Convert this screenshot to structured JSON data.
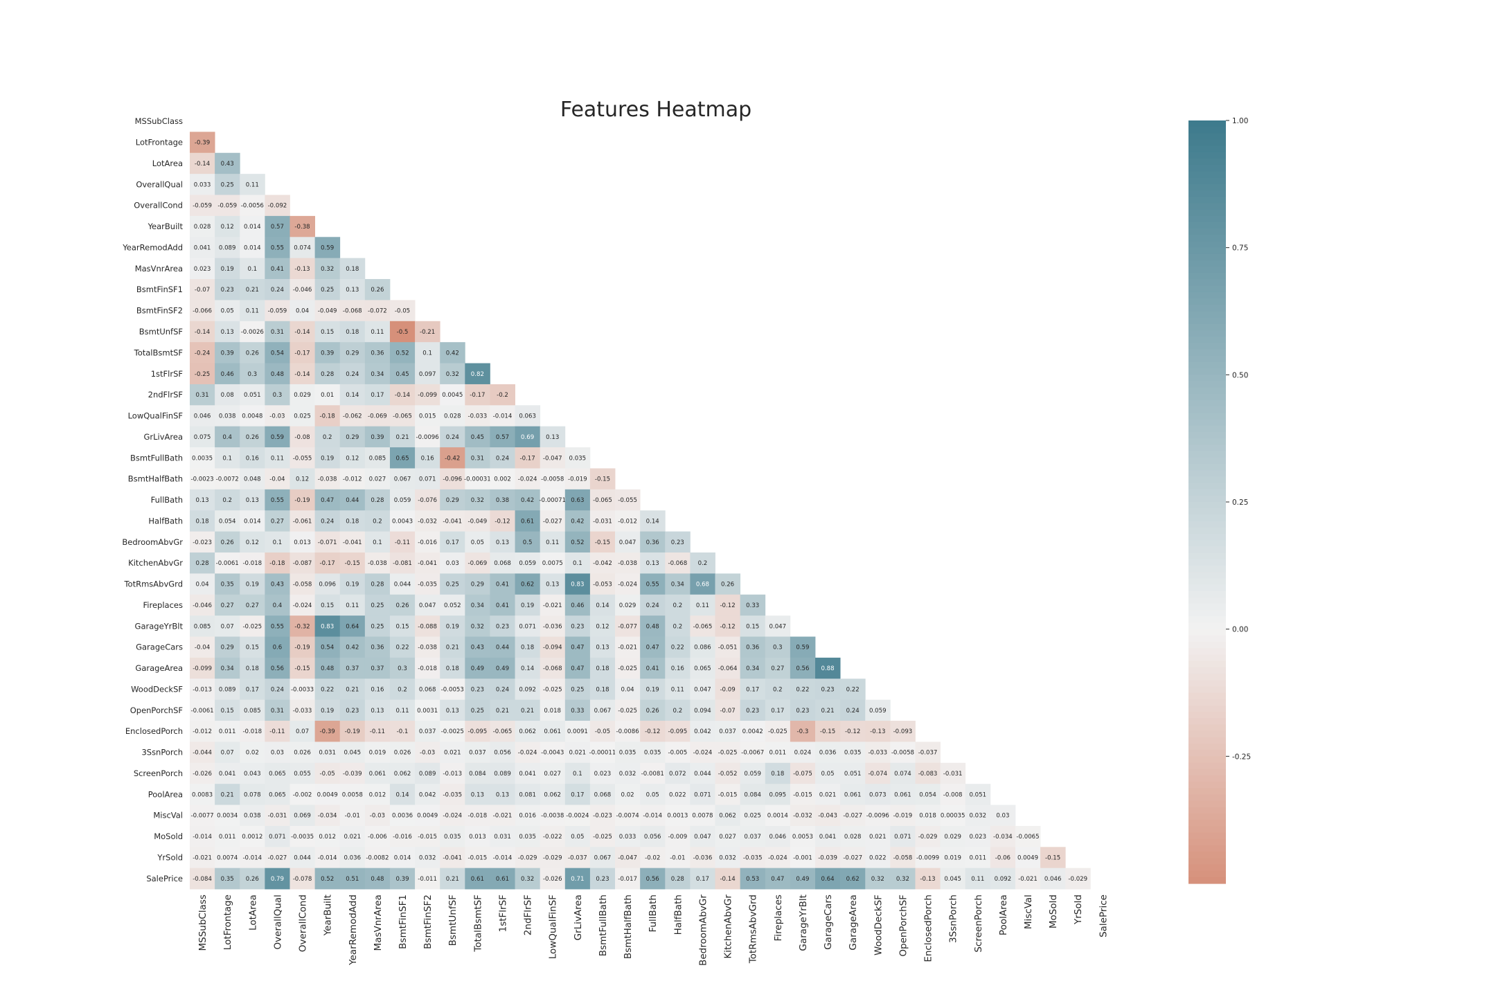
{
  "chart_data": {
    "type": "heatmap",
    "title": "Features Heatmap",
    "mask": "upper-triangle-and-diagonal",
    "labels": [
      "MSSubClass",
      "LotFrontage",
      "LotArea",
      "OverallQual",
      "OverallCond",
      "YearBuilt",
      "YearRemodAdd",
      "MasVnrArea",
      "BsmtFinSF1",
      "BsmtFinSF2",
      "BsmtUnfSF",
      "TotalBsmtSF",
      "1stFlrSF",
      "2ndFlrSF",
      "LowQualFinSF",
      "GrLivArea",
      "BsmtFullBath",
      "BsmtHalfBath",
      "FullBath",
      "HalfBath",
      "BedroomAbvGr",
      "KitchenAbvGr",
      "TotRmsAbvGrd",
      "Fireplaces",
      "GarageYrBlt",
      "GarageCars",
      "GarageArea",
      "WoodDeckSF",
      "OpenPorchSF",
      "EnclosedPorch",
      "3SsnPorch",
      "ScreenPorch",
      "PoolArea",
      "MiscVal",
      "MoSold",
      "YrSold",
      "SalePrice"
    ],
    "rows": [
      [],
      [
        "-0.39"
      ],
      [
        "-0.14",
        "0.43"
      ],
      [
        "0.033",
        "0.25",
        "0.11"
      ],
      [
        "-0.059",
        "-0.059",
        "-0.0056",
        "-0.092"
      ],
      [
        "0.028",
        "0.12",
        "0.014",
        "0.57",
        "-0.38"
      ],
      [
        "0.041",
        "0.089",
        "0.014",
        "0.55",
        "0.074",
        "0.59"
      ],
      [
        "0.023",
        "0.19",
        "0.1",
        "0.41",
        "-0.13",
        "0.32",
        "0.18"
      ],
      [
        "-0.07",
        "0.23",
        "0.21",
        "0.24",
        "-0.046",
        "0.25",
        "0.13",
        "0.26"
      ],
      [
        "-0.066",
        "0.05",
        "0.11",
        "-0.059",
        "0.04",
        "-0.049",
        "-0.068",
        "-0.072",
        "-0.05"
      ],
      [
        "-0.14",
        "0.13",
        "-0.0026",
        "0.31",
        "-0.14",
        "0.15",
        "0.18",
        "0.11",
        "-0.5",
        "-0.21"
      ],
      [
        "-0.24",
        "0.39",
        "0.26",
        "0.54",
        "-0.17",
        "0.39",
        "0.29",
        "0.36",
        "0.52",
        "0.1",
        "0.42"
      ],
      [
        "-0.25",
        "0.46",
        "0.3",
        "0.48",
        "-0.14",
        "0.28",
        "0.24",
        "0.34",
        "0.45",
        "0.097",
        "0.32",
        "0.82"
      ],
      [
        "0.31",
        "0.08",
        "0.051",
        "0.3",
        "0.029",
        "0.01",
        "0.14",
        "0.17",
        "-0.14",
        "-0.099",
        "0.0045",
        "-0.17",
        "-0.2"
      ],
      [
        "0.046",
        "0.038",
        "0.0048",
        "-0.03",
        "0.025",
        "-0.18",
        "-0.062",
        "-0.069",
        "-0.065",
        "0.015",
        "0.028",
        "-0.033",
        "-0.014",
        "0.063"
      ],
      [
        "0.075",
        "0.4",
        "0.26",
        "0.59",
        "-0.08",
        "0.2",
        "0.29",
        "0.39",
        "0.21",
        "-0.0096",
        "0.24",
        "0.45",
        "0.57",
        "0.69",
        "0.13"
      ],
      [
        "0.0035",
        "0.1",
        "0.16",
        "0.11",
        "-0.055",
        "0.19",
        "0.12",
        "0.085",
        "0.65",
        "0.16",
        "-0.42",
        "0.31",
        "0.24",
        "-0.17",
        "-0.047",
        "0.035"
      ],
      [
        "-0.0023",
        "-0.0072",
        "0.048",
        "-0.04",
        "0.12",
        "-0.038",
        "-0.012",
        "0.027",
        "0.067",
        "0.071",
        "-0.096",
        "-0.00031",
        "0.002",
        "-0.024",
        "-0.0058",
        "-0.019",
        "-0.15"
      ],
      [
        "0.13",
        "0.2",
        "0.13",
        "0.55",
        "-0.19",
        "0.47",
        "0.44",
        "0.28",
        "0.059",
        "-0.076",
        "0.29",
        "0.32",
        "0.38",
        "0.42",
        "-0.00071",
        "0.63",
        "-0.065",
        "-0.055"
      ],
      [
        "0.18",
        "0.054",
        "0.014",
        "0.27",
        "-0.061",
        "0.24",
        "0.18",
        "0.2",
        "0.0043",
        "-0.032",
        "-0.041",
        "-0.049",
        "-0.12",
        "0.61",
        "-0.027",
        "0.42",
        "-0.031",
        "-0.012",
        "0.14"
      ],
      [
        "-0.023",
        "0.26",
        "0.12",
        "0.1",
        "0.013",
        "-0.071",
        "-0.041",
        "0.1",
        "-0.11",
        "-0.016",
        "0.17",
        "0.05",
        "0.13",
        "0.5",
        "0.11",
        "0.52",
        "-0.15",
        "0.047",
        "0.36",
        "0.23"
      ],
      [
        "0.28",
        "-0.0061",
        "-0.018",
        "-0.18",
        "-0.087",
        "-0.17",
        "-0.15",
        "-0.038",
        "-0.081",
        "-0.041",
        "0.03",
        "-0.069",
        "0.068",
        "0.059",
        "0.0075",
        "0.1",
        "-0.042",
        "-0.038",
        "0.13",
        "-0.068",
        "0.2"
      ],
      [
        "0.04",
        "0.35",
        "0.19",
        "0.43",
        "-0.058",
        "0.096",
        "0.19",
        "0.28",
        "0.044",
        "-0.035",
        "0.25",
        "0.29",
        "0.41",
        "0.62",
        "0.13",
        "0.83",
        "-0.053",
        "-0.024",
        "0.55",
        "0.34",
        "0.68",
        "0.26"
      ],
      [
        "-0.046",
        "0.27",
        "0.27",
        "0.4",
        "-0.024",
        "0.15",
        "0.11",
        "0.25",
        "0.26",
        "0.047",
        "0.052",
        "0.34",
        "0.41",
        "0.19",
        "-0.021",
        "0.46",
        "0.14",
        "0.029",
        "0.24",
        "0.2",
        "0.11",
        "-0.12",
        "0.33"
      ],
      [
        "0.085",
        "0.07",
        "-0.025",
        "0.55",
        "-0.32",
        "0.83",
        "0.64",
        "0.25",
        "0.15",
        "-0.088",
        "0.19",
        "0.32",
        "0.23",
        "0.071",
        "-0.036",
        "0.23",
        "0.12",
        "-0.077",
        "0.48",
        "0.2",
        "-0.065",
        "-0.12",
        "0.15",
        "0.047"
      ],
      [
        "-0.04",
        "0.29",
        "0.15",
        "0.6",
        "-0.19",
        "0.54",
        "0.42",
        "0.36",
        "0.22",
        "-0.038",
        "0.21",
        "0.43",
        "0.44",
        "0.18",
        "-0.094",
        "0.47",
        "0.13",
        "-0.021",
        "0.47",
        "0.22",
        "0.086",
        "-0.051",
        "0.36",
        "0.3",
        "0.59"
      ],
      [
        "-0.099",
        "0.34",
        "0.18",
        "0.56",
        "-0.15",
        "0.48",
        "0.37",
        "0.37",
        "0.3",
        "-0.018",
        "0.18",
        "0.49",
        "0.49",
        "0.14",
        "-0.068",
        "0.47",
        "0.18",
        "-0.025",
        "0.41",
        "0.16",
        "0.065",
        "-0.064",
        "0.34",
        "0.27",
        "0.56",
        "0.88"
      ],
      [
        "-0.013",
        "0.089",
        "0.17",
        "0.24",
        "-0.0033",
        "0.22",
        "0.21",
        "0.16",
        "0.2",
        "0.068",
        "-0.0053",
        "0.23",
        "0.24",
        "0.092",
        "-0.025",
        "0.25",
        "0.18",
        "0.04",
        "0.19",
        "0.11",
        "0.047",
        "-0.09",
        "0.17",
        "0.2",
        "0.22",
        "0.23",
        "0.22"
      ],
      [
        "-0.0061",
        "0.15",
        "0.085",
        "0.31",
        "-0.033",
        "0.19",
        "0.23",
        "0.13",
        "0.11",
        "0.0031",
        "0.13",
        "0.25",
        "0.21",
        "0.21",
        "0.018",
        "0.33",
        "0.067",
        "-0.025",
        "0.26",
        "0.2",
        "0.094",
        "-0.07",
        "0.23",
        "0.17",
        "0.23",
        "0.21",
        "0.24",
        "0.059"
      ],
      [
        "-0.012",
        "0.011",
        "-0.018",
        "-0.11",
        "0.07",
        "-0.39",
        "-0.19",
        "-0.11",
        "-0.1",
        "0.037",
        "-0.0025",
        "-0.095",
        "-0.065",
        "0.062",
        "0.061",
        "0.0091",
        "-0.05",
        "-0.0086",
        "-0.12",
        "-0.095",
        "0.042",
        "0.037",
        "0.0042",
        "-0.025",
        "-0.3",
        "-0.15",
        "-0.12",
        "-0.13",
        "-0.093"
      ],
      [
        "-0.044",
        "0.07",
        "0.02",
        "0.03",
        "0.026",
        "0.031",
        "0.045",
        "0.019",
        "0.026",
        "-0.03",
        "0.021",
        "0.037",
        "0.056",
        "-0.024",
        "-0.0043",
        "0.021",
        "-0.00011",
        "0.035",
        "0.035",
        "-0.005",
        "-0.024",
        "-0.025",
        "-0.0067",
        "0.011",
        "0.024",
        "0.036",
        "0.035",
        "-0.033",
        "-0.0058",
        "-0.037"
      ],
      [
        "-0.026",
        "0.041",
        "0.043",
        "0.065",
        "0.055",
        "-0.05",
        "-0.039",
        "0.061",
        "0.062",
        "0.089",
        "-0.013",
        "0.084",
        "0.089",
        "0.041",
        "0.027",
        "0.1",
        "0.023",
        "0.032",
        "-0.0081",
        "0.072",
        "0.044",
        "-0.052",
        "0.059",
        "0.18",
        "-0.075",
        "0.05",
        "0.051",
        "-0.074",
        "0.074",
        "-0.083",
        "-0.031"
      ],
      [
        "0.0083",
        "0.21",
        "0.078",
        "0.065",
        "-0.002",
        "0.0049",
        "0.0058",
        "0.012",
        "0.14",
        "0.042",
        "-0.035",
        "0.13",
        "0.13",
        "0.081",
        "0.062",
        "0.17",
        "0.068",
        "0.02",
        "0.05",
        "0.022",
        "0.071",
        "-0.015",
        "0.084",
        "0.095",
        "-0.015",
        "0.021",
        "0.061",
        "0.073",
        "0.061",
        "0.054",
        "-0.008",
        "0.051"
      ],
      [
        "-0.0077",
        "0.0034",
        "0.038",
        "-0.031",
        "0.069",
        "-0.034",
        "-0.01",
        "-0.03",
        "0.0036",
        "0.0049",
        "-0.024",
        "-0.018",
        "-0.021",
        "0.016",
        "-0.0038",
        "-0.0024",
        "-0.023",
        "-0.0074",
        "-0.014",
        "0.0013",
        "0.0078",
        "0.062",
        "0.025",
        "0.0014",
        "-0.032",
        "-0.043",
        "-0.027",
        "-0.0096",
        "-0.019",
        "0.018",
        "0.00035",
        "0.032",
        "0.03"
      ],
      [
        "-0.014",
        "0.011",
        "0.0012",
        "0.071",
        "-0.0035",
        "0.012",
        "0.021",
        "-0.006",
        "-0.016",
        "-0.015",
        "0.035",
        "0.013",
        "0.031",
        "0.035",
        "-0.022",
        "0.05",
        "-0.025",
        "0.033",
        "0.056",
        "-0.009",
        "0.047",
        "0.027",
        "0.037",
        "0.046",
        "0.0053",
        "0.041",
        "0.028",
        "0.021",
        "0.071",
        "-0.029",
        "0.029",
        "0.023",
        "-0.034",
        "-0.0065"
      ],
      [
        "-0.021",
        "0.0074",
        "-0.014",
        "-0.027",
        "0.044",
        "-0.014",
        "0.036",
        "-0.0082",
        "0.014",
        "0.032",
        "-0.041",
        "-0.015",
        "-0.014",
        "-0.029",
        "-0.029",
        "-0.037",
        "0.067",
        "-0.047",
        "-0.02",
        "-0.01",
        "-0.036",
        "0.032",
        "-0.035",
        "-0.024",
        "-0.001",
        "-0.039",
        "-0.027",
        "0.022",
        "-0.058",
        "-0.0099",
        "0.019",
        "0.011",
        "-0.06",
        "0.0049",
        "-0.15"
      ],
      [
        "-0.084",
        "0.35",
        "0.26",
        "0.79",
        "-0.078",
        "0.52",
        "0.51",
        "0.48",
        "0.39",
        "-0.011",
        "0.21",
        "0.61",
        "0.61",
        "0.32",
        "-0.026",
        "0.71",
        "0.23",
        "-0.017",
        "0.56",
        "0.28",
        "0.17",
        "-0.14",
        "0.53",
        "0.47",
        "0.49",
        "0.64",
        "0.62",
        "0.32",
        "0.32",
        "-0.13",
        "0.045",
        "0.11",
        "0.092",
        "-0.021",
        "0.046",
        "-0.029"
      ]
    ],
    "colorbar": {
      "range": [
        -0.5,
        1.0
      ],
      "ticks": [
        "1.00",
        "0.75",
        "0.50",
        "0.25",
        "0.00",
        "-0.25"
      ],
      "tick_values": [
        1.0,
        0.75,
        0.5,
        0.25,
        0.0,
        -0.25
      ],
      "colors": {
        "negative": "#d6907a",
        "neutral": "#f2f2f2",
        "positive": "#3d7a8c"
      }
    }
  }
}
